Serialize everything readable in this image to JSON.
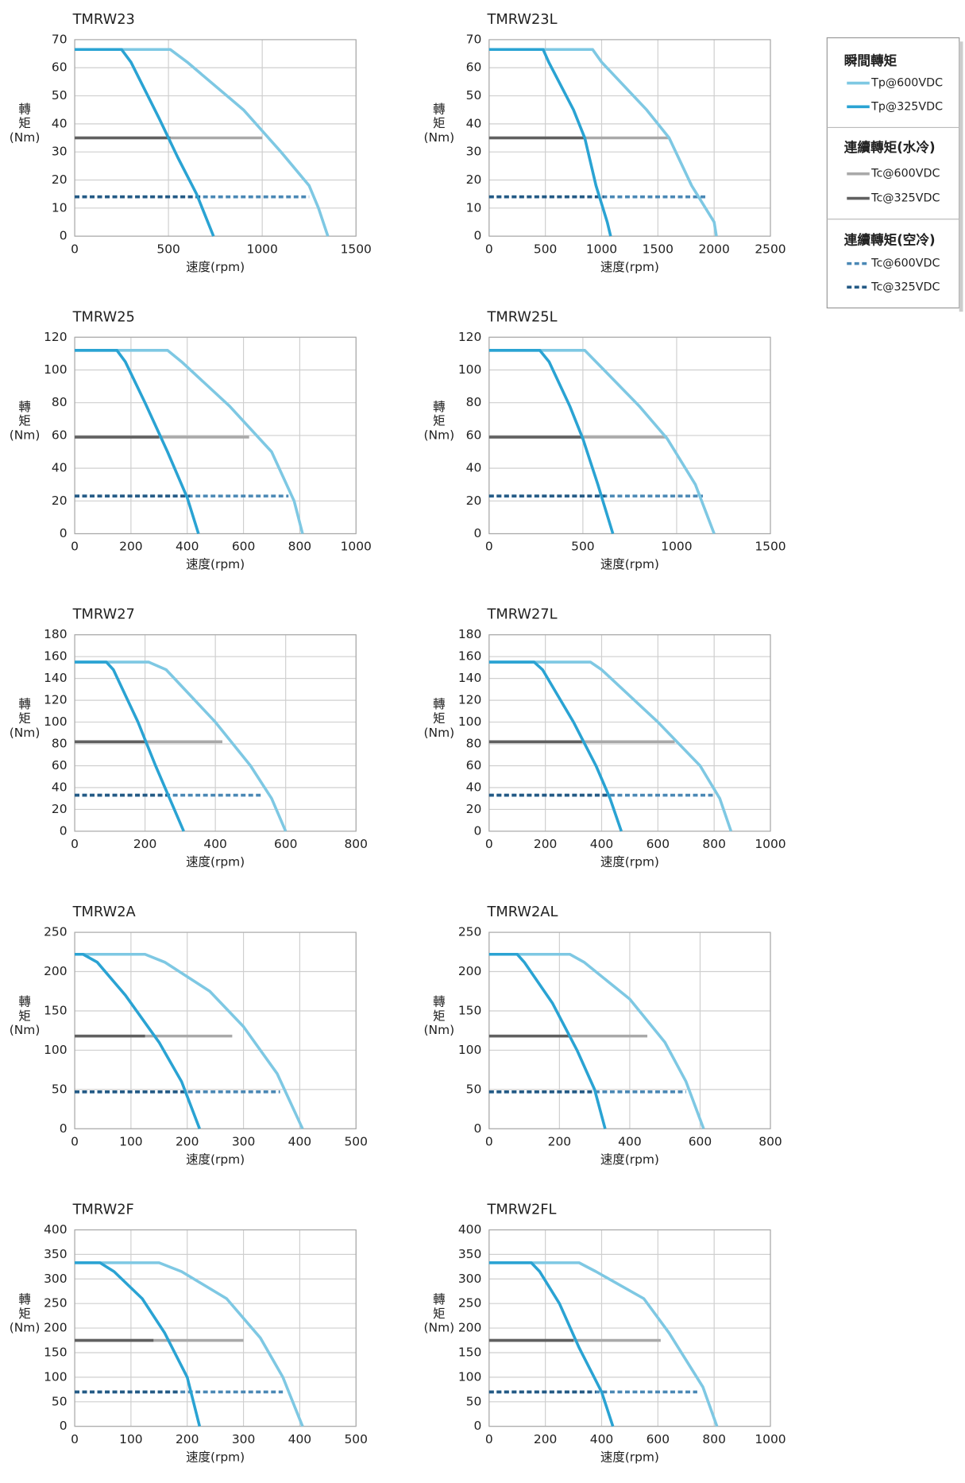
{
  "legend": [
    {
      "title": "瞬間轉矩",
      "entries": [
        {
          "name": "Tp@600VDC",
          "color": "#7ec8e3",
          "dashed": false
        },
        {
          "name": "Tp@325VDC",
          "color": "#2aa3d3",
          "dashed": false
        }
      ]
    },
    {
      "title": "連續轉矩(水冷)",
      "entries": [
        {
          "name": "Tc@600VDC",
          "color": "#a9a9a9",
          "dashed": false
        },
        {
          "name": "Tc@325VDC",
          "color": "#606060",
          "dashed": false
        }
      ]
    },
    {
      "title": "連續轉矩(空冷)",
      "entries": [
        {
          "name": "Tc@600VDC",
          "color": "#4a88b5",
          "dashed": true
        },
        {
          "name": "Tc@325VDC",
          "color": "#245a85",
          "dashed": true
        }
      ]
    }
  ],
  "chart_data": [
    {
      "type": "line",
      "title": "TMRW23",
      "x_label": "速度(rpm)",
      "y_label": [
        "轉",
        "矩",
        "(Nm)"
      ],
      "xlim": [
        0,
        1500
      ],
      "xticks": [
        0,
        500,
        1000,
        1500
      ],
      "ylim": [
        0,
        70
      ],
      "yticks": [
        0,
        10,
        20,
        30,
        40,
        50,
        60,
        70
      ],
      "grid": true,
      "series": [
        {
          "x": [
            0,
            510,
            600,
            900,
            1100,
            1250,
            1300,
            1350
          ],
          "values": [
            66.5,
            66.5,
            62,
            45,
            30,
            18,
            10,
            0
          ]
        },
        {
          "x": [
            0,
            250,
            300,
            450,
            550,
            650,
            740
          ],
          "values": [
            66.5,
            66.5,
            62,
            42,
            28,
            15,
            0
          ]
        },
        {
          "x": [
            0,
            1000
          ],
          "values": [
            35,
            35
          ]
        },
        {
          "x": [
            0,
            510
          ],
          "values": [
            35,
            35
          ]
        },
        {
          "x": [
            0,
            1250
          ],
          "values": [
            14,
            14
          ]
        },
        {
          "x": [
            0,
            680
          ],
          "values": [
            14,
            14
          ]
        }
      ]
    },
    {
      "type": "line",
      "title": "TMRW23L",
      "x_label": "速度(rpm)",
      "y_label": [
        "轉",
        "矩",
        "(Nm)"
      ],
      "xlim": [
        0,
        2500
      ],
      "xticks": [
        0,
        500,
        1000,
        1500,
        2000,
        2500
      ],
      "ylim": [
        0,
        70
      ],
      "yticks": [
        0,
        10,
        20,
        30,
        40,
        50,
        60,
        70
      ],
      "grid": true,
      "series": [
        {
          "x": [
            0,
            920,
            1000,
            1400,
            1600,
            1800,
            2000,
            2020
          ],
          "values": [
            66.5,
            66.5,
            62,
            45,
            35,
            18,
            5,
            0
          ]
        },
        {
          "x": [
            0,
            480,
            530,
            750,
            850,
            950,
            1050,
            1080
          ],
          "values": [
            66.5,
            66.5,
            62,
            45,
            35,
            18,
            5,
            0
          ]
        },
        {
          "x": [
            0,
            1600
          ],
          "values": [
            35,
            35
          ]
        },
        {
          "x": [
            0,
            850
          ],
          "values": [
            35,
            35
          ]
        },
        {
          "x": [
            0,
            1940
          ],
          "values": [
            14,
            14
          ]
        },
        {
          "x": [
            0,
            1020
          ],
          "values": [
            14,
            14
          ]
        }
      ]
    },
    {
      "type": "line",
      "title": "TMRW25",
      "x_label": "速度(rpm)",
      "y_label": [
        "轉",
        "矩",
        "(Nm)"
      ],
      "xlim": [
        0,
        1000
      ],
      "xticks": [
        0,
        200,
        400,
        600,
        800,
        1000
      ],
      "ylim": [
        0,
        120
      ],
      "yticks": [
        0,
        20,
        40,
        60,
        80,
        100,
        120
      ],
      "grid": true,
      "series": [
        {
          "x": [
            0,
            330,
            380,
            550,
            700,
            780,
            810
          ],
          "values": [
            112,
            112,
            105,
            78,
            50,
            20,
            0
          ]
        },
        {
          "x": [
            0,
            150,
            180,
            250,
            330,
            400,
            440
          ],
          "values": [
            112,
            112,
            105,
            80,
            50,
            22,
            0
          ]
        },
        {
          "x": [
            0,
            620
          ],
          "values": [
            59,
            59
          ]
        },
        {
          "x": [
            0,
            300
          ],
          "values": [
            59,
            59
          ]
        },
        {
          "x": [
            0,
            760
          ],
          "values": [
            23,
            23
          ]
        },
        {
          "x": [
            0,
            410
          ],
          "values": [
            23,
            23
          ]
        }
      ]
    },
    {
      "type": "line",
      "title": "TMRW25L",
      "x_label": "速度(rpm)",
      "y_label": [
        "轉",
        "矩",
        "(Nm)"
      ],
      "xlim": [
        0,
        1500
      ],
      "xticks": [
        0,
        500,
        1000,
        1500
      ],
      "ylim": [
        0,
        120
      ],
      "yticks": [
        0,
        20,
        40,
        60,
        80,
        100,
        120
      ],
      "grid": true,
      "series": [
        {
          "x": [
            0,
            510,
            570,
            800,
            950,
            1100,
            1200
          ],
          "values": [
            112,
            112,
            105,
            78,
            58,
            30,
            0
          ]
        },
        {
          "x": [
            0,
            270,
            320,
            430,
            500,
            580,
            660
          ],
          "values": [
            112,
            112,
            105,
            78,
            58,
            30,
            0
          ]
        },
        {
          "x": [
            0,
            950
          ],
          "values": [
            59,
            59
          ]
        },
        {
          "x": [
            0,
            500
          ],
          "values": [
            59,
            59
          ]
        },
        {
          "x": [
            0,
            1140
          ],
          "values": [
            23,
            23
          ]
        },
        {
          "x": [
            0,
            620
          ],
          "values": [
            23,
            23
          ]
        }
      ]
    },
    {
      "type": "line",
      "title": "TMRW27",
      "x_label": "速度(rpm)",
      "y_label": [
        "轉",
        "矩",
        "(Nm)"
      ],
      "xlim": [
        0,
        800
      ],
      "xticks": [
        0,
        200,
        400,
        600,
        800
      ],
      "ylim": [
        0,
        180
      ],
      "yticks": [
        0,
        20,
        40,
        60,
        80,
        100,
        120,
        140,
        160,
        180
      ],
      "grid": true,
      "series": [
        {
          "x": [
            0,
            210,
            260,
            400,
            500,
            560,
            600
          ],
          "values": [
            155,
            155,
            148,
            100,
            60,
            30,
            0
          ]
        },
        {
          "x": [
            0,
            90,
            110,
            180,
            230,
            270,
            310
          ],
          "values": [
            155,
            155,
            148,
            100,
            60,
            30,
            0
          ]
        },
        {
          "x": [
            0,
            420
          ],
          "values": [
            82,
            82
          ]
        },
        {
          "x": [
            0,
            200
          ],
          "values": [
            82,
            82
          ]
        },
        {
          "x": [
            0,
            530
          ],
          "values": [
            33,
            33
          ]
        },
        {
          "x": [
            0,
            270
          ],
          "values": [
            33,
            33
          ]
        }
      ]
    },
    {
      "type": "line",
      "title": "TMRW27L",
      "x_label": "速度(rpm)",
      "y_label": [
        "轉",
        "矩",
        "(Nm)"
      ],
      "xlim": [
        0,
        1000
      ],
      "xticks": [
        0,
        200,
        400,
        600,
        800,
        1000
      ],
      "ylim": [
        0,
        180
      ],
      "yticks": [
        0,
        20,
        40,
        60,
        80,
        100,
        120,
        140,
        160,
        180
      ],
      "grid": true,
      "series": [
        {
          "x": [
            0,
            360,
            400,
            600,
            750,
            820,
            860
          ],
          "values": [
            155,
            155,
            148,
            100,
            60,
            30,
            0
          ]
        },
        {
          "x": [
            0,
            160,
            190,
            300,
            380,
            430,
            470
          ],
          "values": [
            155,
            155,
            148,
            100,
            60,
            30,
            0
          ]
        },
        {
          "x": [
            0,
            660
          ],
          "values": [
            82,
            82
          ]
        },
        {
          "x": [
            0,
            330
          ],
          "values": [
            82,
            82
          ]
        },
        {
          "x": [
            0,
            800
          ],
          "values": [
            33,
            33
          ]
        },
        {
          "x": [
            0,
            420
          ],
          "values": [
            33,
            33
          ]
        }
      ]
    },
    {
      "type": "line",
      "title": "TMRW2A",
      "x_label": "速度(rpm)",
      "y_label": [
        "轉",
        "矩",
        "(Nm)"
      ],
      "xlim": [
        0,
        500
      ],
      "xticks": [
        0,
        100,
        200,
        300,
        400,
        500
      ],
      "ylim": [
        0,
        250
      ],
      "yticks": [
        0,
        50,
        100,
        150,
        200,
        250
      ],
      "grid": true,
      "series": [
        {
          "x": [
            0,
            125,
            160,
            240,
            300,
            360,
            405
          ],
          "values": [
            222,
            222,
            212,
            175,
            130,
            70,
            0
          ]
        },
        {
          "x": [
            0,
            15,
            40,
            90,
            150,
            190,
            222
          ],
          "values": [
            222,
            222,
            212,
            170,
            110,
            60,
            0
          ]
        },
        {
          "x": [
            0,
            280
          ],
          "values": [
            118,
            118
          ]
        },
        {
          "x": [
            0,
            125
          ],
          "values": [
            118,
            118
          ]
        },
        {
          "x": [
            0,
            365
          ],
          "values": [
            47,
            47
          ]
        },
        {
          "x": [
            0,
            195
          ],
          "values": [
            47,
            47
          ]
        }
      ]
    },
    {
      "type": "line",
      "title": "TMRW2AL",
      "x_label": "速度(rpm)",
      "y_label": [
        "轉",
        "矩",
        "(Nm)"
      ],
      "xlim": [
        0,
        800
      ],
      "xticks": [
        0,
        200,
        400,
        600,
        800
      ],
      "ylim": [
        0,
        250
      ],
      "yticks": [
        0,
        50,
        100,
        150,
        200,
        250
      ],
      "grid": true,
      "series": [
        {
          "x": [
            0,
            230,
            270,
            400,
            500,
            560,
            610
          ],
          "values": [
            222,
            222,
            212,
            165,
            110,
            60,
            0
          ]
        },
        {
          "x": [
            0,
            80,
            100,
            180,
            250,
            300,
            330
          ],
          "values": [
            222,
            222,
            212,
            160,
            100,
            50,
            0
          ]
        },
        {
          "x": [
            0,
            450
          ],
          "values": [
            118,
            118
          ]
        },
        {
          "x": [
            0,
            230
          ],
          "values": [
            118,
            118
          ]
        },
        {
          "x": [
            0,
            560
          ],
          "values": [
            47,
            47
          ]
        },
        {
          "x": [
            0,
            300
          ],
          "values": [
            47,
            47
          ]
        }
      ]
    },
    {
      "type": "line",
      "title": "TMRW2F",
      "x_label": "速度(rpm)",
      "y_label": [
        "轉",
        "矩",
        "(Nm)"
      ],
      "xlim": [
        0,
        500
      ],
      "xticks": [
        0,
        100,
        200,
        300,
        400,
        500
      ],
      "ylim": [
        0,
        400
      ],
      "yticks": [
        0,
        50,
        100,
        150,
        200,
        250,
        300,
        350,
        400
      ],
      "grid": true,
      "series": [
        {
          "x": [
            0,
            150,
            190,
            270,
            330,
            370,
            405
          ],
          "values": [
            333,
            333,
            315,
            260,
            180,
            100,
            0
          ]
        },
        {
          "x": [
            0,
            45,
            70,
            120,
            160,
            200,
            222
          ],
          "values": [
            333,
            333,
            315,
            260,
            190,
            100,
            0
          ]
        },
        {
          "x": [
            0,
            300
          ],
          "values": [
            175,
            175
          ]
        },
        {
          "x": [
            0,
            140
          ],
          "values": [
            175,
            175
          ]
        },
        {
          "x": [
            0,
            370
          ],
          "values": [
            70,
            70
          ]
        },
        {
          "x": [
            0,
            185
          ],
          "values": [
            70,
            70
          ]
        }
      ]
    },
    {
      "type": "line",
      "title": "TMRW2FL",
      "x_label": "速度(rpm)",
      "y_label": [
        "轉",
        "矩",
        "(Nm)"
      ],
      "xlim": [
        0,
        1000
      ],
      "xticks": [
        0,
        200,
        400,
        600,
        800,
        1000
      ],
      "ylim": [
        0,
        400
      ],
      "yticks": [
        0,
        50,
        100,
        150,
        200,
        250,
        300,
        350,
        400
      ],
      "grid": true,
      "series": [
        {
          "x": [
            0,
            320,
            380,
            550,
            640,
            760,
            810
          ],
          "values": [
            333,
            333,
            315,
            260,
            190,
            80,
            0
          ]
        },
        {
          "x": [
            0,
            150,
            180,
            250,
            320,
            400,
            440
          ],
          "values": [
            333,
            333,
            315,
            250,
            160,
            70,
            0
          ]
        },
        {
          "x": [
            0,
            610
          ],
          "values": [
            175,
            175
          ]
        },
        {
          "x": [
            0,
            300
          ],
          "values": [
            175,
            175
          ]
        },
        {
          "x": [
            0,
            740
          ],
          "values": [
            70,
            70
          ]
        },
        {
          "x": [
            0,
            380
          ],
          "values": [
            70,
            70
          ]
        }
      ]
    }
  ]
}
